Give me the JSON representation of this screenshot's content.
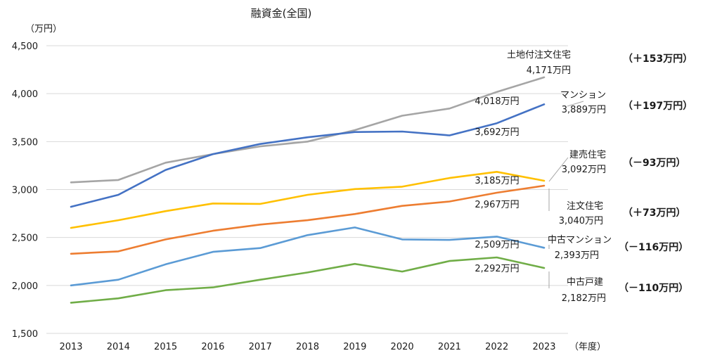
{
  "chart_data": {
    "type": "line",
    "title": "融資金(全国)",
    "ylabel": "（万円）",
    "xlabel": "（年度）",
    "ylim": [
      1500,
      4500
    ],
    "yticks": [
      1500,
      2000,
      2500,
      3000,
      3500,
      4000,
      4500
    ],
    "ytick_labels": [
      "1,500",
      "2,000",
      "2,500",
      "3,000",
      "3,500",
      "4,000",
      "4,500"
    ],
    "categories": [
      "2013",
      "2014",
      "2015",
      "2016",
      "2017",
      "2018",
      "2019",
      "2020",
      "2021",
      "2022",
      "2023"
    ],
    "series": [
      {
        "name": "土地付注文住宅",
        "color": "#a5a5a5",
        "values": [
          3075,
          3100,
          3280,
          3370,
          3450,
          3500,
          3620,
          3770,
          3845,
          4018,
          4171
        ],
        "label_2022": "4,018万円",
        "label_2023": "4,171万円",
        "change": "（＋153万円）"
      },
      {
        "name": "マンション",
        "color": "#4472c4",
        "values": [
          2820,
          2945,
          3205,
          3370,
          3475,
          3545,
          3600,
          3605,
          3565,
          3692,
          3889
        ],
        "label_2022": "3,692万円",
        "label_2023": "3,889万円",
        "change": "（＋197万円）"
      },
      {
        "name": "建売住宅",
        "color": "#ffc000",
        "values": [
          2600,
          2680,
          2775,
          2855,
          2850,
          2945,
          3005,
          3030,
          3120,
          3185,
          3092
        ],
        "label_2022": "3,185万円",
        "label_2023": "3,092万円",
        "change": "（－93万円）"
      },
      {
        "name": "注文住宅",
        "color": "#ed7d31",
        "values": [
          2330,
          2355,
          2480,
          2570,
          2635,
          2680,
          2745,
          2830,
          2875,
          2967,
          3040
        ],
        "label_2022": "2,967万円",
        "label_2023": "3,040万円",
        "change": "（＋73万円）"
      },
      {
        "name": "中古マンション",
        "color": "#5b9bd5",
        "values": [
          2000,
          2060,
          2220,
          2350,
          2390,
          2525,
          2605,
          2480,
          2475,
          2509,
          2393
        ],
        "label_2022": "2,509万円",
        "label_2023": "2,393万円",
        "change": "（－116万円）"
      },
      {
        "name": "中古戸建",
        "color": "#70ad47",
        "values": [
          1820,
          1865,
          1950,
          1980,
          2060,
          2135,
          2225,
          2145,
          2255,
          2292,
          2182
        ],
        "label_2022": "2,292万円",
        "label_2023": "2,182万円",
        "change": "（－110万円）"
      }
    ]
  }
}
